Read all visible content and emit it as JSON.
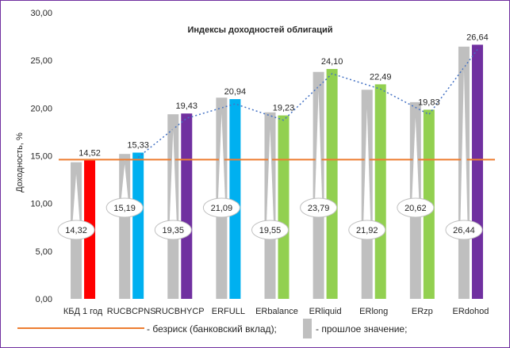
{
  "chart_data": {
    "type": "bar",
    "title": "Индексы доходностей облигаций",
    "ylabel": "Доходность, %",
    "xlabel": "",
    "ylim": [
      0,
      30
    ],
    "y_ticks": [
      "0,00",
      "5,00",
      "10,00",
      "15,00",
      "20,00",
      "25,00",
      "30,00"
    ],
    "categories": [
      "КБД 1 год",
      "RUCBCPNS",
      "RUCBHYCP",
      "ERFULL",
      "ERbalance",
      "ERliquid",
      "ERlong",
      "ERzp",
      "ERdohod"
    ],
    "series": [
      {
        "name": "прошлое значение",
        "values": [
          14.32,
          15.19,
          19.35,
          21.09,
          19.55,
          23.79,
          21.92,
          20.62,
          26.44
        ],
        "labels": [
          "14,32",
          "15,19",
          "19,35",
          "21,09",
          "19,55",
          "23,79",
          "21,92",
          "20,62",
          "26,44"
        ],
        "color": "#bfbfbf"
      },
      {
        "values": [
          14.52,
          15.33,
          19.43,
          20.94,
          19.23,
          24.1,
          22.49,
          19.83,
          26.64
        ],
        "labels": [
          "14,52",
          "15,33",
          "19,43",
          "20,94",
          "19,23",
          "24,10",
          "22,49",
          "19,83",
          "26,64"
        ],
        "colors": [
          "#ff0000",
          "#00b0f0",
          "#7030a0",
          "#00b0f0",
          "#92d050",
          "#92d050",
          "#92d050",
          "#92d050",
          "#7030a0"
        ]
      }
    ],
    "riskfree": {
      "name": "безриск (банковский вклад)",
      "value": 14.6,
      "color": "#ed7d31"
    },
    "trend_color": "#4472c4",
    "legend": {
      "position": "bottom",
      "riskfree_label": "- безриск (банковский вклад);",
      "previous_label": "- прошлое значение;"
    },
    "grid": false
  }
}
